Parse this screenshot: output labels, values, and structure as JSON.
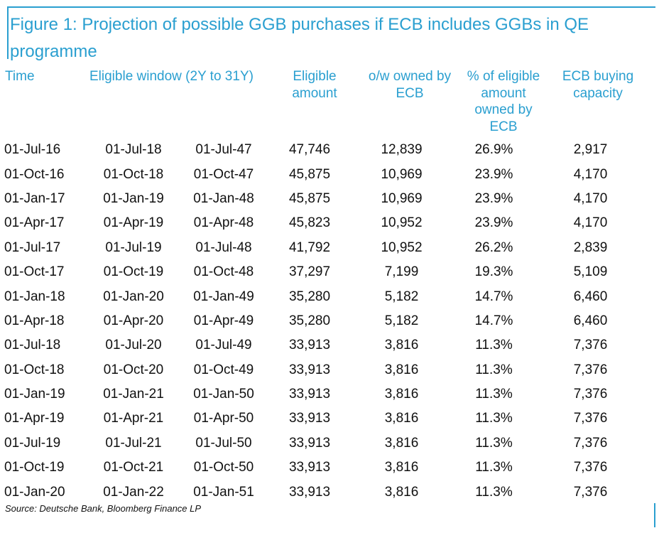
{
  "title": "Figure 1: Projection of possible GGB purchases if ECB includes GGBs in QE programme",
  "headers": {
    "time": "Time",
    "window": "Eligible window (2Y to 31Y)",
    "amount": "Eligible amount",
    "owned": "o/w owned by ECB",
    "pct": "% of eligible amount owned by ECB",
    "capacity": "ECB buying capacity"
  },
  "rows": [
    [
      "01-Jul-16",
      "01-Jul-18",
      "01-Jul-47",
      "47,746",
      "12,839",
      "26.9%",
      "2,917"
    ],
    [
      "01-Oct-16",
      "01-Oct-18",
      "01-Oct-47",
      "45,875",
      "10,969",
      "23.9%",
      "4,170"
    ],
    [
      "01-Jan-17",
      "01-Jan-19",
      "01-Jan-48",
      "45,875",
      "10,969",
      "23.9%",
      "4,170"
    ],
    [
      "01-Apr-17",
      "01-Apr-19",
      "01-Apr-48",
      "45,823",
      "10,952",
      "23.9%",
      "4,170"
    ],
    [
      "01-Jul-17",
      "01-Jul-19",
      "01-Jul-48",
      "41,792",
      "10,952",
      "26.2%",
      "2,839"
    ],
    [
      "01-Oct-17",
      "01-Oct-19",
      "01-Oct-48",
      "37,297",
      "7,199",
      "19.3%",
      "5,109"
    ],
    [
      "01-Jan-18",
      "01-Jan-20",
      "01-Jan-49",
      "35,280",
      "5,182",
      "14.7%",
      "6,460"
    ],
    [
      "01-Apr-18",
      "01-Apr-20",
      "01-Apr-49",
      "35,280",
      "5,182",
      "14.7%",
      "6,460"
    ],
    [
      "01-Jul-18",
      "01-Jul-20",
      "01-Jul-49",
      "33,913",
      "3,816",
      "11.3%",
      "7,376"
    ],
    [
      "01-Oct-18",
      "01-Oct-20",
      "01-Oct-49",
      "33,913",
      "3,816",
      "11.3%",
      "7,376"
    ],
    [
      "01-Jan-19",
      "01-Jan-21",
      "01-Jan-50",
      "33,913",
      "3,816",
      "11.3%",
      "7,376"
    ],
    [
      "01-Apr-19",
      "01-Apr-21",
      "01-Apr-50",
      "33,913",
      "3,816",
      "11.3%",
      "7,376"
    ],
    [
      "01-Jul-19",
      "01-Jul-21",
      "01-Jul-50",
      "33,913",
      "3,816",
      "11.3%",
      "7,376"
    ],
    [
      "01-Oct-19",
      "01-Oct-21",
      "01-Oct-50",
      "33,913",
      "3,816",
      "11.3%",
      "7,376"
    ],
    [
      "01-Jan-20",
      "01-Jan-22",
      "01-Jan-51",
      "33,913",
      "3,816",
      "11.3%",
      "7,376"
    ]
  ],
  "source": "Source: Deutsche Bank, Bloomberg Finance LP",
  "colors": {
    "accent": "#2a9fd0",
    "text": "#111111"
  }
}
